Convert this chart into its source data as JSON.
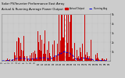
{
  "title": "Solar PV/Inverter Performance East Array   Running Avg",
  "title_fontsize": 3.0,
  "bg_color": "#cccccc",
  "plot_bg_color": "#cccccc",
  "bar_color": "#cc0000",
  "avg_color": "#0000dd",
  "ylim": [
    0,
    5000
  ],
  "ytick_labels": [
    "5k",
    "4k",
    "3k",
    "2k",
    "1k",
    ""
  ],
  "grid_color": "#aaaaaa",
  "num_points": 700
}
